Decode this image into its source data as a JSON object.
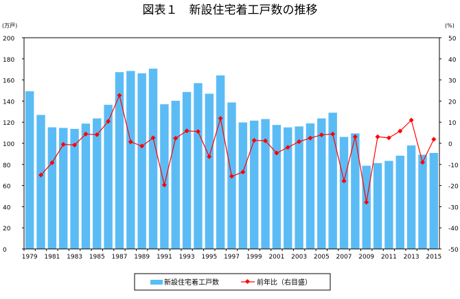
{
  "chart_data": {
    "type": "bar+line",
    "title": "図表１　新設住宅着工戸数の推移",
    "left_unit": "(万戸)",
    "right_unit": "(%)",
    "ylim_left": [
      0,
      200
    ],
    "ylim_right": [
      -50,
      50
    ],
    "left_ticks": [
      0,
      20,
      40,
      60,
      80,
      100,
      120,
      140,
      160,
      180,
      200
    ],
    "right_ticks": [
      -50,
      -40,
      -30,
      -20,
      -10,
      0,
      10,
      20,
      30,
      40,
      50
    ],
    "grid": false,
    "legend_position": "bottom",
    "years": [
      1979,
      1980,
      1981,
      1982,
      1983,
      1984,
      1985,
      1986,
      1987,
      1988,
      1989,
      1990,
      1991,
      1992,
      1993,
      1994,
      1995,
      1996,
      1997,
      1998,
      1999,
      2000,
      2001,
      2002,
      2003,
      2004,
      2005,
      2006,
      2007,
      2008,
      2009,
      2010,
      2011,
      2012,
      2013,
      2014,
      2015
    ],
    "x_tick_labels": [
      "1979",
      "1981",
      "1983",
      "1985",
      "1987",
      "1989",
      "1991",
      "1993",
      "1995",
      "1997",
      "1999",
      "2001",
      "2003",
      "2005",
      "2007",
      "2009",
      "2011",
      "2013",
      "2015"
    ],
    "series": [
      {
        "name": "新設住宅着工戸数",
        "axis": "left",
        "type": "bar",
        "color": "#5bbcf5",
        "values": [
          149.3,
          126.9,
          115.2,
          114.6,
          113.7,
          118.7,
          123.6,
          136.5,
          167.4,
          168.5,
          166.3,
          170.7,
          137.0,
          140.3,
          148.6,
          157.0,
          147.0,
          164.3,
          138.7,
          119.8,
          121.5,
          123.0,
          117.4,
          115.1,
          116.0,
          118.9,
          123.6,
          129.0,
          106.1,
          109.4,
          78.8,
          81.3,
          83.4,
          88.3,
          98.0,
          89.2,
          90.9
        ]
      },
      {
        "name": "前年比（右目盛）",
        "axis": "right",
        "type": "line",
        "color": "#ff0000",
        "values": [
          null,
          -15.0,
          -9.2,
          -0.5,
          -0.8,
          4.4,
          4.1,
          10.4,
          22.7,
          0.7,
          -1.3,
          2.6,
          -19.7,
          2.4,
          5.9,
          5.6,
          -6.3,
          11.8,
          -15.6,
          -13.6,
          1.4,
          1.2,
          -4.6,
          -1.9,
          0.8,
          2.5,
          4.0,
          4.4,
          -17.8,
          3.1,
          -27.9,
          3.1,
          2.6,
          5.8,
          11.0,
          -9.0,
          1.9
        ]
      }
    ]
  }
}
